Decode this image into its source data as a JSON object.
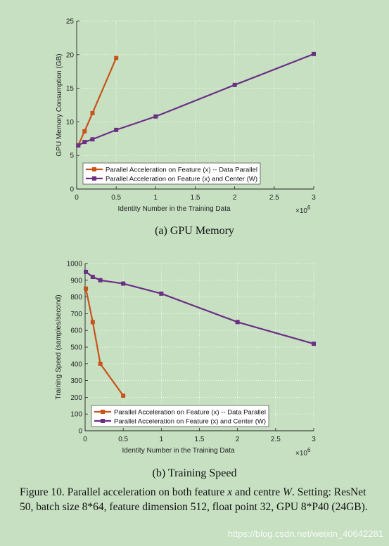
{
  "colors": {
    "background": "#c7e0c2",
    "series_orange": "#c8521a",
    "series_purple": "#6b2f85",
    "axis": "#222222",
    "grid": "#ffffff"
  },
  "chart_data": [
    {
      "type": "line",
      "subcaption": "(a)  GPU Memory",
      "xlabel": "Identity Number in the Training Data",
      "ylabel": "GPU Memory Consumption (GB)",
      "x_exponent": "×10",
      "x_exponent_power": "6",
      "xlim": [
        0,
        3
      ],
      "ylim": [
        0,
        25
      ],
      "xticks": [
        0,
        0.5,
        1,
        1.5,
        2,
        2.5,
        3
      ],
      "xtick_labels": [
        "0",
        "0.5",
        "1",
        "1.5",
        "2",
        "2.5",
        "3"
      ],
      "yticks": [
        0,
        5,
        10,
        15,
        20,
        25
      ],
      "ytick_labels": [
        "0",
        "5",
        "10",
        "15",
        "20",
        "25"
      ],
      "grid": true,
      "legend_position": "bottom-left",
      "series": [
        {
          "name": "Parallel Acceleration on Feature (x) -- Data Parallel",
          "color": "#c8521a",
          "x": [
            0.02,
            0.1,
            0.2,
            0.5
          ],
          "y": [
            6.5,
            8.6,
            11.3,
            19.5
          ]
        },
        {
          "name": "Parallel Acceleration on Feature (x) and Center (W)",
          "color": "#6b2f85",
          "x": [
            0.02,
            0.1,
            0.2,
            0.5,
            1,
            2,
            3
          ],
          "y": [
            6.5,
            7.0,
            7.4,
            8.8,
            10.8,
            15.5,
            20.1
          ]
        }
      ]
    },
    {
      "type": "line",
      "subcaption": "(b)  Training Speed",
      "xlabel": "Identity Number in the Training Data",
      "ylabel": "Training Speed (samples/second)",
      "x_exponent": "×10",
      "x_exponent_power": "6",
      "xlim": [
        0,
        3
      ],
      "ylim": [
        0,
        1000
      ],
      "xticks": [
        0,
        0.5,
        1,
        1.5,
        2,
        2.5,
        3
      ],
      "xtick_labels": [
        "0",
        "0.5",
        "1",
        "1.5",
        "2",
        "2.5",
        "3"
      ],
      "yticks": [
        0,
        100,
        200,
        300,
        400,
        500,
        600,
        700,
        800,
        900,
        1000
      ],
      "ytick_labels": [
        "0",
        "100",
        "200",
        "300",
        "400",
        "500",
        "600",
        "700",
        "800",
        "900",
        "1000"
      ],
      "grid": true,
      "legend_position": "bottom-left",
      "series": [
        {
          "name": "Parallel Acceleration on Feature (x) -- Data Parallel",
          "color": "#c8521a",
          "x": [
            0.01,
            0.1,
            0.2,
            0.5
          ],
          "y": [
            850,
            650,
            400,
            210
          ]
        },
        {
          "name": "Parallel Acceleration on Feature (x) and Center (W)",
          "color": "#6b2f85",
          "x": [
            0.01,
            0.1,
            0.2,
            0.5,
            1,
            2,
            3
          ],
          "y": [
            950,
            920,
            900,
            880,
            820,
            650,
            520
          ]
        }
      ]
    }
  ],
  "caption": {
    "prefix": "Figure 10. Parallel acceleration on both feature ",
    "var1": "x",
    "mid": " and centre ",
    "var2": "W",
    "end": ".",
    "line2": "Setting: ResNet 50, batch size 8*64, feature dimension 512, float point 32, GPU 8*P40 (24GB)."
  },
  "watermark": "https://blog.csdn.net/weixin_40642281"
}
